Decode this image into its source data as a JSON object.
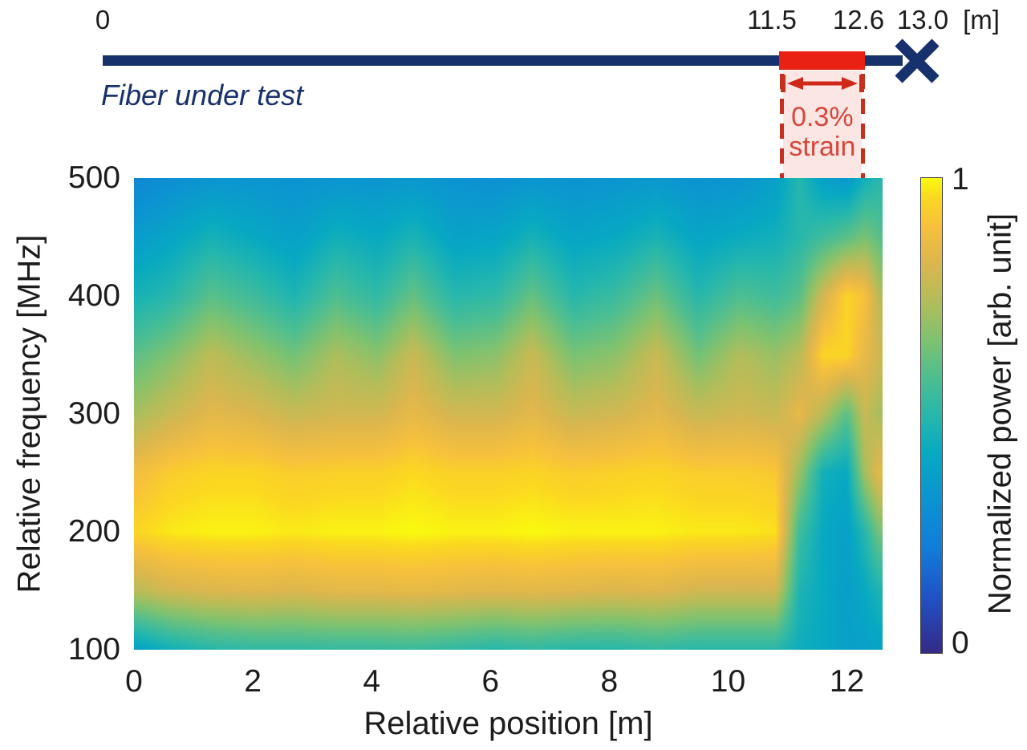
{
  "schematic": {
    "labels": {
      "zero": "0",
      "strain_start": "11.5",
      "strain_end": "12.6",
      "end": "13.0",
      "unit": "[m]"
    },
    "fiber_label": "Fiber under test",
    "strain_line1": "0.3%",
    "strain_line2": "strain",
    "colors": {
      "fiber": "#17316d",
      "strain_segment": "#e92113",
      "dashed_line": "#c5301f",
      "arrow": "#d02818",
      "strain_text": "#d6473a",
      "pink_fill": "#fbe6e4"
    }
  },
  "chart_data": {
    "type": "heatmap",
    "xlabel": "Relative position [m]",
    "ylabel": "Relative frequency [MHz]",
    "colorbar_label": "Normalized power [arb. unit]",
    "colorbar_tick_top": "1",
    "colorbar_tick_bottom": "0",
    "x_ticks": [
      0,
      2,
      4,
      6,
      8,
      10,
      12
    ],
    "y_ticks": [
      500,
      400,
      300,
      200,
      100
    ],
    "xlim": [
      0,
      12.6
    ],
    "ylim": [
      100,
      500
    ],
    "zlim": [
      0,
      1
    ],
    "strain_marker_x_m": [
      10.9,
      12.27
    ],
    "colormap": "parula",
    "colormap_stops": [
      [
        0.0,
        "#352a87"
      ],
      [
        0.12,
        "#2053c7"
      ],
      [
        0.22,
        "#127dd8"
      ],
      [
        0.32,
        "#0c93d2"
      ],
      [
        0.42,
        "#07a9c2"
      ],
      [
        0.5,
        "#27b7ac"
      ],
      [
        0.58,
        "#4ebe91"
      ],
      [
        0.66,
        "#7fc270"
      ],
      [
        0.74,
        "#b3bd5a"
      ],
      [
        0.82,
        "#dcb64e"
      ],
      [
        0.9,
        "#f7c13c"
      ],
      [
        0.96,
        "#fbd920"
      ],
      [
        1.0,
        "#f9fb0e"
      ]
    ],
    "grid": {
      "x": [
        0,
        0.6,
        1.3,
        2.0,
        2.7,
        3.4,
        4.1,
        4.7,
        5.4,
        6.1,
        6.7,
        7.4,
        8.1,
        8.8,
        9.5,
        10.2,
        10.8,
        11.2,
        11.6,
        12.0,
        12.3,
        12.55,
        12.8
      ],
      "f": [
        500,
        450,
        400,
        350,
        300,
        250,
        200,
        150,
        100
      ],
      "power": [
        [
          0.26,
          0.3,
          0.33,
          0.33,
          0.32,
          0.33,
          0.33,
          0.34,
          0.32,
          0.31,
          0.33,
          0.32,
          0.33,
          0.34,
          0.32,
          0.33,
          0.38,
          0.5,
          0.38,
          0.34,
          0.45,
          0.5,
          0.45
        ],
        [
          0.36,
          0.4,
          0.46,
          0.42,
          0.38,
          0.45,
          0.42,
          0.47,
          0.39,
          0.4,
          0.46,
          0.4,
          0.42,
          0.47,
          0.4,
          0.43,
          0.45,
          0.5,
          0.55,
          0.6,
          0.65,
          0.6,
          0.5
        ],
        [
          0.46,
          0.5,
          0.6,
          0.55,
          0.48,
          0.58,
          0.52,
          0.62,
          0.5,
          0.52,
          0.62,
          0.5,
          0.54,
          0.63,
          0.5,
          0.58,
          0.55,
          0.6,
          0.8,
          0.95,
          0.9,
          0.75,
          0.65
        ],
        [
          0.6,
          0.66,
          0.76,
          0.7,
          0.64,
          0.73,
          0.68,
          0.78,
          0.66,
          0.68,
          0.78,
          0.65,
          0.68,
          0.78,
          0.64,
          0.74,
          0.7,
          0.75,
          0.95,
          0.95,
          0.85,
          0.8,
          0.75
        ],
        [
          0.72,
          0.78,
          0.84,
          0.82,
          0.78,
          0.8,
          0.8,
          0.85,
          0.8,
          0.8,
          0.84,
          0.78,
          0.8,
          0.84,
          0.78,
          0.8,
          0.78,
          0.85,
          0.75,
          0.6,
          0.78,
          0.72,
          0.7
        ],
        [
          0.88,
          0.93,
          0.95,
          0.95,
          0.93,
          0.94,
          0.94,
          0.96,
          0.94,
          0.94,
          0.95,
          0.93,
          0.94,
          0.95,
          0.93,
          0.93,
          0.92,
          0.7,
          0.45,
          0.42,
          0.72,
          0.85,
          0.78
        ],
        [
          0.95,
          0.98,
          0.99,
          0.99,
          0.98,
          0.99,
          0.99,
          1.0,
          0.99,
          0.99,
          1.0,
          0.99,
          0.99,
          0.99,
          0.98,
          0.98,
          0.97,
          0.55,
          0.42,
          0.38,
          0.5,
          0.65,
          0.6
        ],
        [
          0.75,
          0.8,
          0.82,
          0.83,
          0.82,
          0.84,
          0.84,
          0.85,
          0.84,
          0.83,
          0.84,
          0.83,
          0.82,
          0.83,
          0.8,
          0.8,
          0.8,
          0.48,
          0.42,
          0.37,
          0.42,
          0.48,
          0.45
        ],
        [
          0.38,
          0.45,
          0.5,
          0.52,
          0.52,
          0.53,
          0.53,
          0.54,
          0.52,
          0.5,
          0.52,
          0.5,
          0.5,
          0.52,
          0.5,
          0.5,
          0.5,
          0.44,
          0.42,
          0.38,
          0.38,
          0.4,
          0.3
        ]
      ]
    }
  }
}
